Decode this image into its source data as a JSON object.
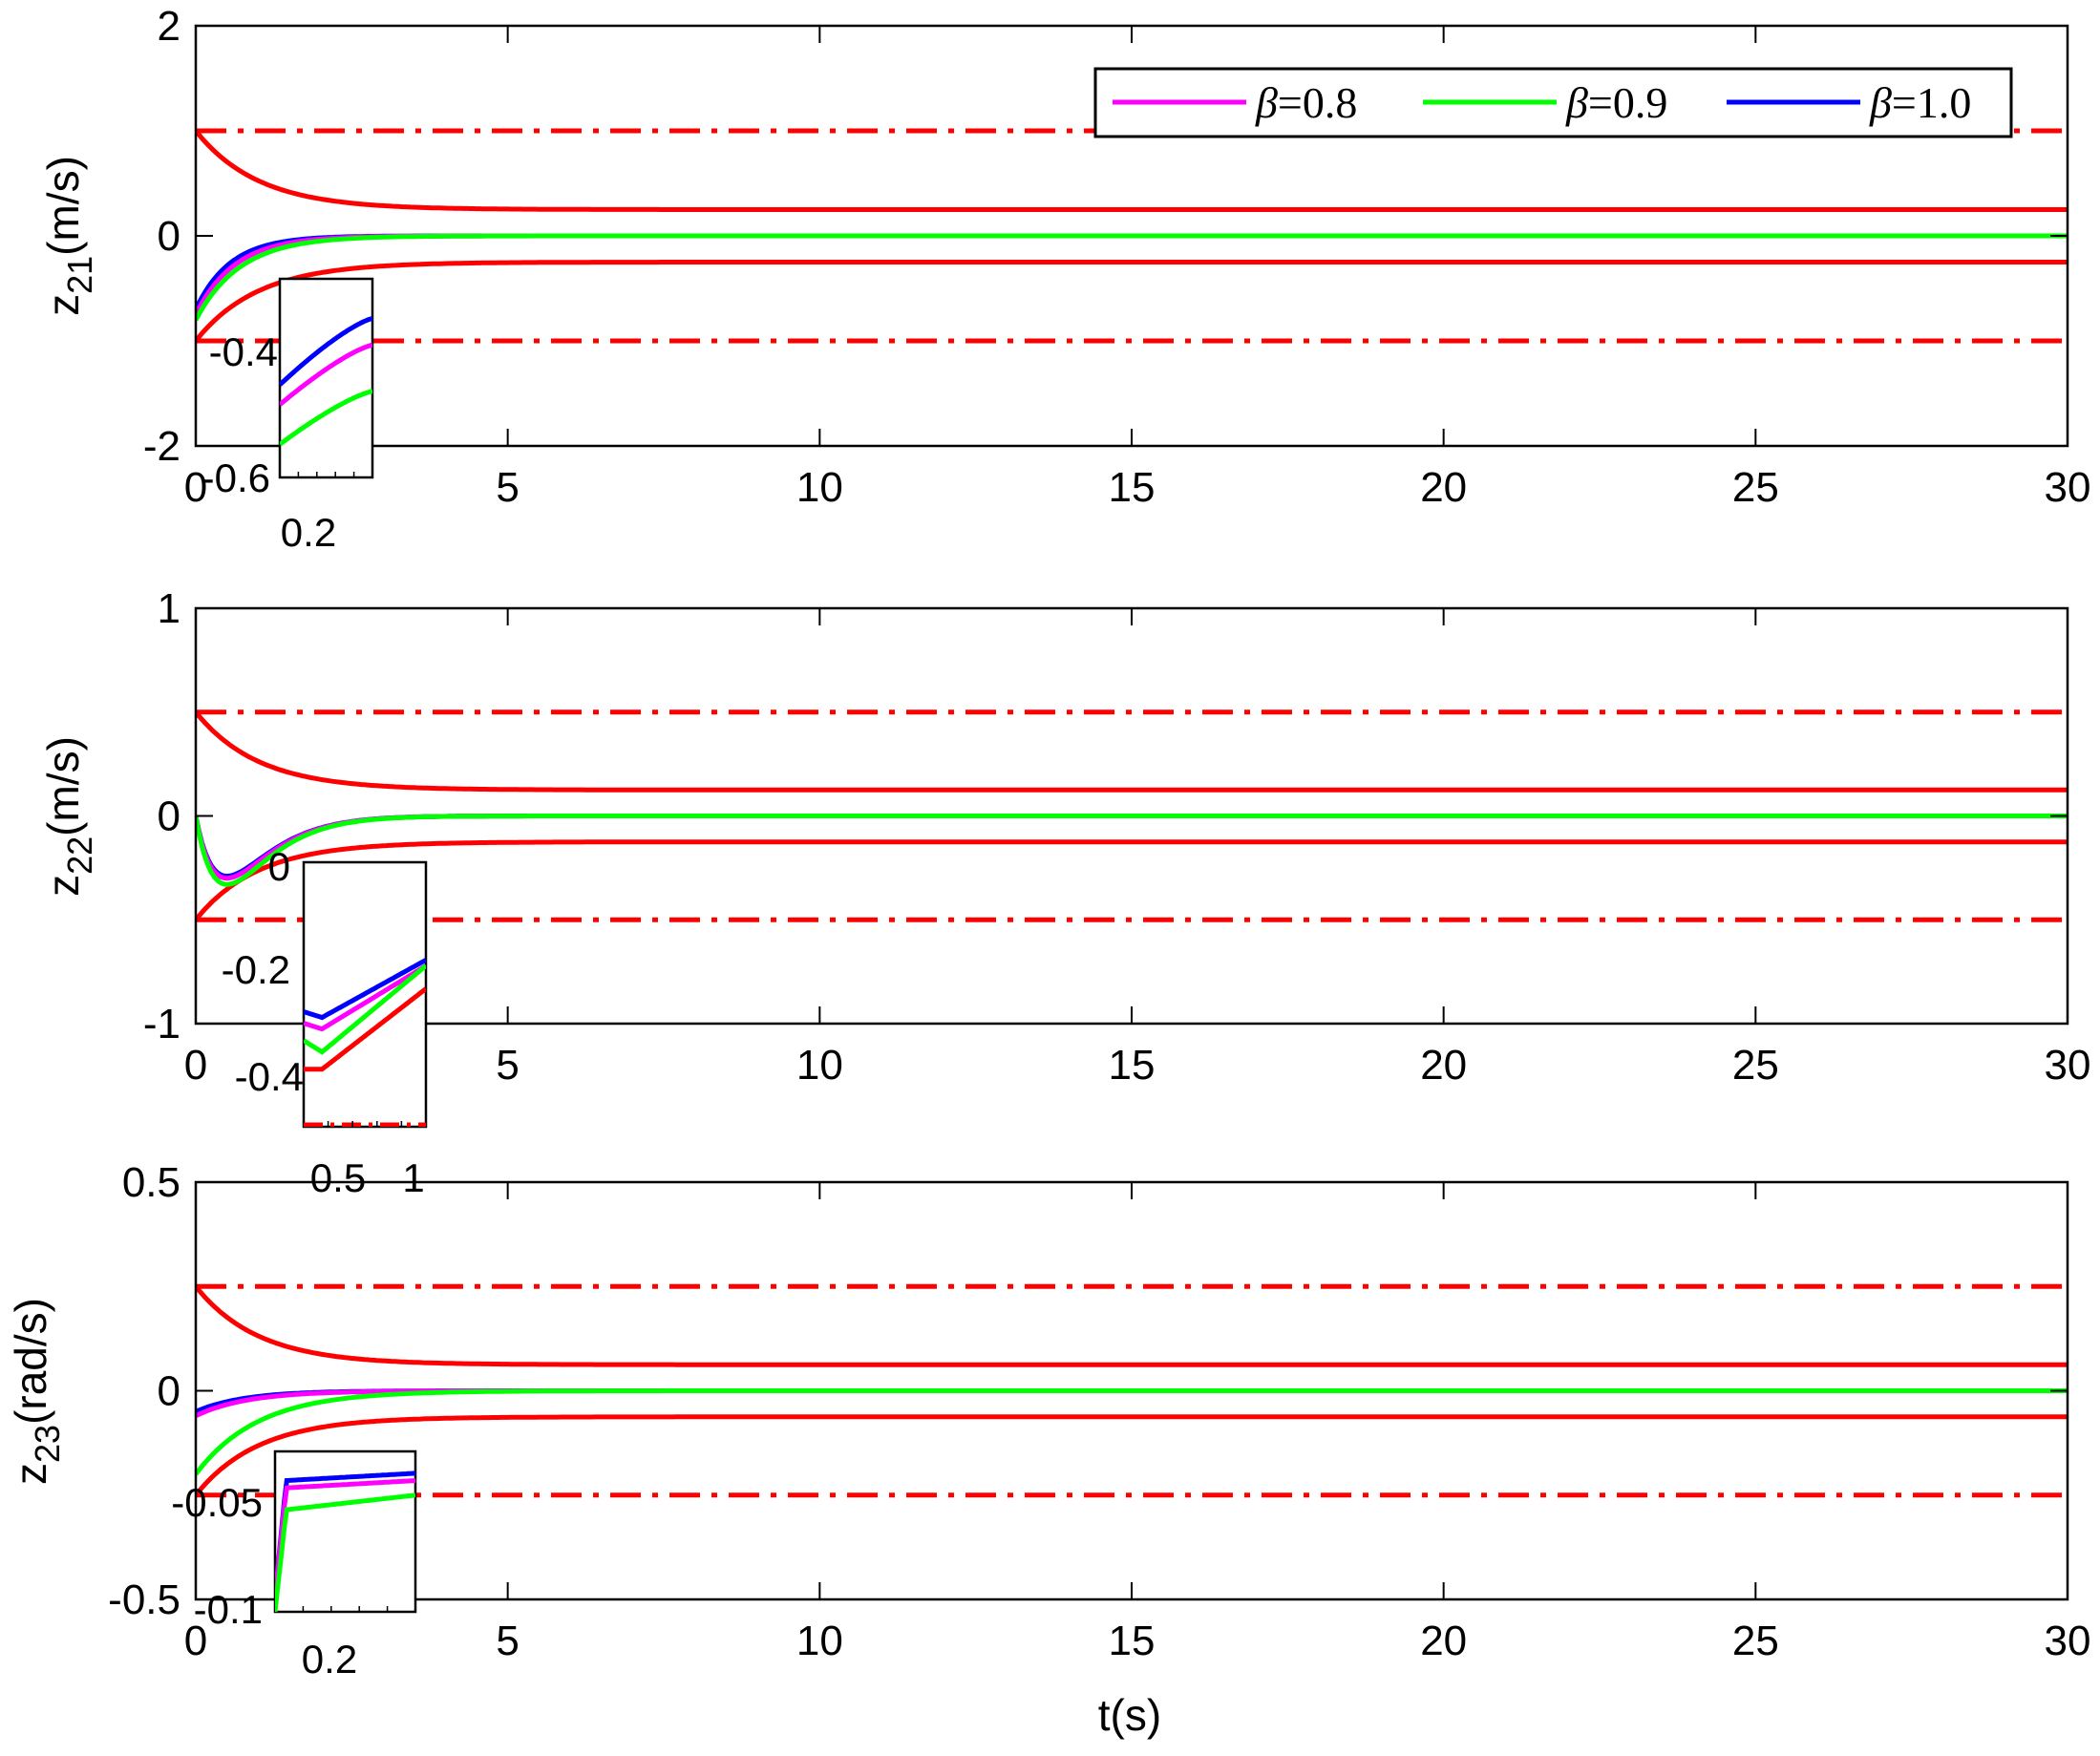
{
  "figure": {
    "xlabel": "t(s)",
    "legend": {
      "placement": "top-right of first panel",
      "entries": [
        {
          "symbol": "β",
          "text": "=0.8",
          "color": "#ff00ff"
        },
        {
          "symbol": "β",
          "text": "=0.9",
          "color": "#00ff00"
        },
        {
          "symbol": "β",
          "text": "=1.0",
          "color": "#0000ff"
        }
      ]
    },
    "colors": {
      "beta08": "#ff00ff",
      "beta09": "#00ff00",
      "beta10": "#0000ff",
      "bound": "#ff0000",
      "constraint": "#ff0000"
    }
  },
  "chart_data": [
    {
      "type": "line",
      "ylabel_main": "z",
      "ylabel_sub": "21",
      "ylabel_unit": "(m/s)",
      "xlim": [
        0,
        30
      ],
      "ylim": [
        -2,
        2
      ],
      "xticks": [
        "0",
        "5",
        "10",
        "15",
        "20",
        "25",
        "30"
      ],
      "xtick_values": [
        0,
        5,
        10,
        15,
        20,
        25,
        30
      ],
      "yticks": [
        "-2",
        "0",
        "2"
      ],
      "ytick_values": [
        -2,
        0,
        2
      ],
      "grid": false,
      "constraint_lines": [
        1,
        -1
      ],
      "performance_bound": {
        "initial": 1.0,
        "final": 0.25,
        "decay_rate": 1.0
      },
      "series": [
        {
          "name": "β=0.8",
          "color": "#ff00ff",
          "initial": -0.75,
          "decay_rate": 1.6
        },
        {
          "name": "β=0.9",
          "color": "#00ff00",
          "initial": -0.8,
          "decay_rate": 1.4
        },
        {
          "name": "β=1.0",
          "color": "#0000ff",
          "initial": -0.7,
          "decay_rate": 1.8
        }
      ],
      "inset": {
        "yticks": [
          "-0.4",
          "-0.6"
        ],
        "xticks": [
          "0.2"
        ],
        "series": [
          {
            "color": "#0000ff",
            "start": -0.48,
            "end": -0.38
          },
          {
            "color": "#ff00ff",
            "start": -0.51,
            "end": -0.42
          },
          {
            "color": "#00ff00",
            "start": -0.57,
            "end": -0.49
          }
        ]
      }
    },
    {
      "type": "line",
      "ylabel_main": "z",
      "ylabel_sub": "22",
      "ylabel_unit": "(m/s)",
      "xlim": [
        0,
        30
      ],
      "ylim": [
        -1,
        1
      ],
      "xticks": [
        "0",
        "5",
        "10",
        "15",
        "20",
        "25",
        "30"
      ],
      "xtick_values": [
        0,
        5,
        10,
        15,
        20,
        25,
        30
      ],
      "yticks": [
        "-1",
        "0",
        "1"
      ],
      "ytick_values": [
        -1,
        0,
        1
      ],
      "grid": false,
      "constraint_lines": [
        0.5,
        -0.5
      ],
      "performance_bound": {
        "initial": 0.5,
        "final": 0.125,
        "decay_rate": 1.0
      },
      "series": [
        {
          "name": "β=0.8",
          "color": "#ff00ff",
          "dip_depth": -0.3,
          "dip_time": 0.5
        },
        {
          "name": "β=0.9",
          "color": "#00ff00",
          "dip_depth": -0.33,
          "dip_time": 0.5
        },
        {
          "name": "β=1.0",
          "color": "#0000ff",
          "dip_depth": -0.29,
          "dip_time": 0.5
        }
      ],
      "inset": {
        "yticks": [
          "0",
          "-0.2",
          "-0.4"
        ],
        "xticks": [
          "0.5",
          "1"
        ],
        "series": [
          {
            "color": "#0000ff",
            "start": -0.26,
            "min": -0.27,
            "end": -0.17
          },
          {
            "color": "#ff00ff",
            "start": -0.28,
            "min": -0.29,
            "end": -0.18
          },
          {
            "color": "#00ff00",
            "start": -0.31,
            "min": -0.33,
            "end": -0.18
          },
          {
            "color": "#ff0000",
            "start": -0.36,
            "min": -0.36,
            "end": -0.22
          }
        ]
      }
    },
    {
      "type": "line",
      "ylabel_main": "z",
      "ylabel_sub": "23",
      "ylabel_unit": "(rad/s)",
      "xlim": [
        0,
        30
      ],
      "ylim": [
        -0.5,
        0.5
      ],
      "xticks": [
        "0",
        "5",
        "10",
        "15",
        "20",
        "25",
        "30"
      ],
      "xtick_values": [
        0,
        5,
        10,
        15,
        20,
        25,
        30
      ],
      "yticks": [
        "-0.5",
        "0",
        "0.5"
      ],
      "ytick_values": [
        -0.5,
        0,
        0.5
      ],
      "grid": false,
      "constraint_lines": [
        0.25,
        -0.25
      ],
      "performance_bound": {
        "initial": 0.25,
        "final": 0.0625,
        "decay_rate": 1.0
      },
      "series": [
        {
          "name": "β=0.8",
          "color": "#ff00ff",
          "initial": -0.06,
          "decay_rate": 1.2
        },
        {
          "name": "β=0.9",
          "color": "#00ff00",
          "initial": -0.2,
          "decay_rate": 1.0
        },
        {
          "name": "β=1.0",
          "color": "#0000ff",
          "initial": -0.05,
          "decay_rate": 1.3
        }
      ],
      "inset": {
        "yticks": [
          "-0.05",
          "-0.1"
        ],
        "xticks": [
          "0.2"
        ],
        "series": [
          {
            "color": "#0000ff",
            "start": -0.1,
            "plateau": -0.02,
            "end": -0.015
          },
          {
            "color": "#ff00ff",
            "start": -0.1,
            "plateau": -0.025,
            "end": -0.02
          },
          {
            "color": "#00ff00",
            "start": -0.11,
            "plateau": -0.04,
            "end": -0.03
          }
        ]
      }
    }
  ]
}
